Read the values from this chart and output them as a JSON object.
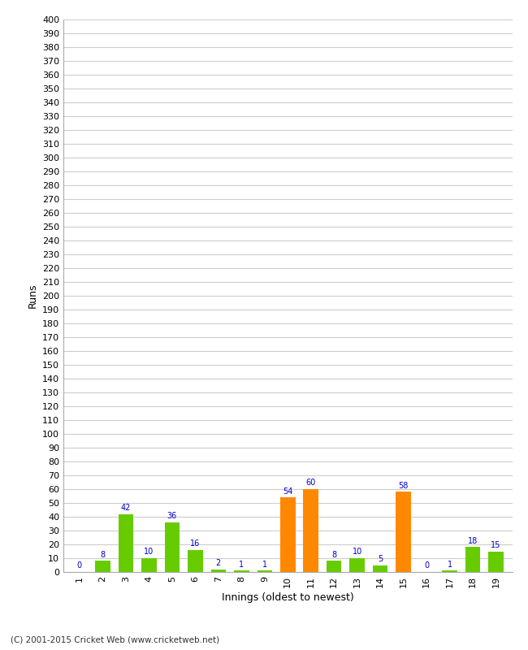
{
  "innings": [
    1,
    2,
    3,
    4,
    5,
    6,
    7,
    8,
    9,
    10,
    11,
    12,
    13,
    14,
    15,
    16,
    17,
    18,
    19
  ],
  "values": [
    0,
    8,
    42,
    10,
    36,
    16,
    2,
    1,
    1,
    54,
    60,
    8,
    10,
    5,
    58,
    0,
    1,
    18,
    15
  ],
  "colors": [
    "#66cc00",
    "#66cc00",
    "#66cc00",
    "#66cc00",
    "#66cc00",
    "#66cc00",
    "#66cc00",
    "#66cc00",
    "#66cc00",
    "#ff8800",
    "#ff8800",
    "#66cc00",
    "#66cc00",
    "#66cc00",
    "#ff8800",
    "#66cc00",
    "#66cc00",
    "#66cc00",
    "#66cc00"
  ],
  "ylabel": "Runs",
  "xlabel": "Innings (oldest to newest)",
  "ylim": [
    0,
    400
  ],
  "yticks": [
    0,
    10,
    20,
    30,
    40,
    50,
    60,
    70,
    80,
    90,
    100,
    110,
    120,
    130,
    140,
    150,
    160,
    170,
    180,
    190,
    200,
    210,
    220,
    230,
    240,
    250,
    260,
    270,
    280,
    290,
    300,
    310,
    320,
    330,
    340,
    350,
    360,
    370,
    380,
    390,
    400
  ],
  "footnote": "(C) 2001-2015 Cricket Web (www.cricketweb.net)",
  "background_color": "#ffffff",
  "grid_color": "#cccccc",
  "label_color": "#0000cc",
  "bar_width": 0.65
}
